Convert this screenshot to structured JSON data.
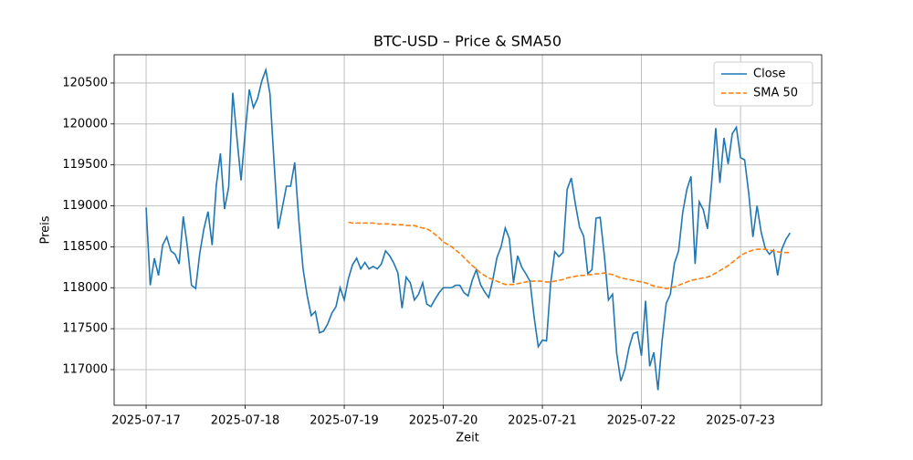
{
  "chart_data": {
    "type": "line",
    "title": "BTC-USD – Price & SMA50",
    "x_label": "Zeit",
    "y_label": "Preis",
    "x": [
      "2025-07-17 00:00",
      "2025-07-17 01:00",
      "2025-07-17 02:00",
      "2025-07-17 03:00",
      "2025-07-17 04:00",
      "2025-07-17 05:00",
      "2025-07-17 06:00",
      "2025-07-17 07:00",
      "2025-07-17 08:00",
      "2025-07-17 09:00",
      "2025-07-17 10:00",
      "2025-07-17 11:00",
      "2025-07-17 12:00",
      "2025-07-17 13:00",
      "2025-07-17 14:00",
      "2025-07-17 15:00",
      "2025-07-17 16:00",
      "2025-07-17 17:00",
      "2025-07-17 18:00",
      "2025-07-17 19:00",
      "2025-07-17 20:00",
      "2025-07-17 21:00",
      "2025-07-17 22:00",
      "2025-07-17 23:00",
      "2025-07-18 00:00",
      "2025-07-18 01:00",
      "2025-07-18 02:00",
      "2025-07-18 03:00",
      "2025-07-18 04:00",
      "2025-07-18 05:00",
      "2025-07-18 06:00",
      "2025-07-18 07:00",
      "2025-07-18 08:00",
      "2025-07-18 09:00",
      "2025-07-18 10:00",
      "2025-07-18 11:00",
      "2025-07-18 12:00",
      "2025-07-18 13:00",
      "2025-07-18 14:00",
      "2025-07-18 15:00",
      "2025-07-18 16:00",
      "2025-07-18 17:00",
      "2025-07-18 18:00",
      "2025-07-18 19:00",
      "2025-07-18 20:00",
      "2025-07-18 21:00",
      "2025-07-18 22:00",
      "2025-07-18 23:00",
      "2025-07-19 00:00",
      "2025-07-19 01:00",
      "2025-07-19 02:00",
      "2025-07-19 03:00",
      "2025-07-19 04:00",
      "2025-07-19 05:00",
      "2025-07-19 06:00",
      "2025-07-19 07:00",
      "2025-07-19 08:00",
      "2025-07-19 09:00",
      "2025-07-19 10:00",
      "2025-07-19 11:00",
      "2025-07-19 12:00",
      "2025-07-19 13:00",
      "2025-07-19 14:00",
      "2025-07-19 15:00",
      "2025-07-19 16:00",
      "2025-07-19 17:00",
      "2025-07-19 18:00",
      "2025-07-19 19:00",
      "2025-07-19 20:00",
      "2025-07-19 21:00",
      "2025-07-19 22:00",
      "2025-07-19 23:00",
      "2025-07-20 00:00",
      "2025-07-20 01:00",
      "2025-07-20 02:00",
      "2025-07-20 03:00",
      "2025-07-20 04:00",
      "2025-07-20 05:00",
      "2025-07-20 06:00",
      "2025-07-20 07:00",
      "2025-07-20 08:00",
      "2025-07-20 09:00",
      "2025-07-20 10:00",
      "2025-07-20 11:00",
      "2025-07-20 12:00",
      "2025-07-20 13:00",
      "2025-07-20 14:00",
      "2025-07-20 15:00",
      "2025-07-20 16:00",
      "2025-07-20 17:00",
      "2025-07-20 18:00",
      "2025-07-20 19:00",
      "2025-07-20 20:00",
      "2025-07-20 21:00",
      "2025-07-20 22:00",
      "2025-07-20 23:00",
      "2025-07-21 00:00",
      "2025-07-21 01:00",
      "2025-07-21 02:00",
      "2025-07-21 03:00",
      "2025-07-21 04:00",
      "2025-07-21 05:00",
      "2025-07-21 06:00",
      "2025-07-21 07:00",
      "2025-07-21 08:00",
      "2025-07-21 09:00",
      "2025-07-21 10:00",
      "2025-07-21 11:00",
      "2025-07-21 12:00",
      "2025-07-21 13:00",
      "2025-07-21 14:00",
      "2025-07-21 15:00",
      "2025-07-21 16:00",
      "2025-07-21 17:00",
      "2025-07-21 18:00",
      "2025-07-21 19:00",
      "2025-07-21 20:00",
      "2025-07-21 21:00",
      "2025-07-21 22:00",
      "2025-07-21 23:00",
      "2025-07-22 00:00",
      "2025-07-22 01:00",
      "2025-07-22 02:00",
      "2025-07-22 03:00",
      "2025-07-22 04:00",
      "2025-07-22 05:00",
      "2025-07-22 06:00",
      "2025-07-22 07:00",
      "2025-07-22 08:00",
      "2025-07-22 09:00",
      "2025-07-22 10:00",
      "2025-07-22 11:00",
      "2025-07-22 12:00",
      "2025-07-22 13:00",
      "2025-07-22 14:00",
      "2025-07-22 15:00",
      "2025-07-22 16:00",
      "2025-07-22 17:00",
      "2025-07-22 18:00",
      "2025-07-22 19:00",
      "2025-07-22 20:00",
      "2025-07-22 21:00",
      "2025-07-22 22:00",
      "2025-07-22 23:00",
      "2025-07-23 00:00",
      "2025-07-23 01:00",
      "2025-07-23 02:00",
      "2025-07-23 03:00",
      "2025-07-23 04:00",
      "2025-07-23 05:00",
      "2025-07-23 06:00",
      "2025-07-23 07:00",
      "2025-07-23 08:00",
      "2025-07-23 09:00",
      "2025-07-23 10:00",
      "2025-07-23 11:00",
      "2025-07-23 12:00"
    ],
    "series": [
      {
        "name": "Close",
        "color": "#1f77b4",
        "dash": "solid",
        "values": [
          118980,
          118030,
          118360,
          118150,
          118520,
          118620,
          118450,
          118410,
          118290,
          118870,
          118500,
          118030,
          117990,
          118420,
          118720,
          118930,
          118520,
          119250,
          119640,
          118960,
          119230,
          120380,
          119830,
          119310,
          119900,
          120420,
          120200,
          120310,
          120520,
          120660,
          120370,
          119530,
          118720,
          118980,
          119240,
          119240,
          119530,
          118820,
          118240,
          117910,
          117660,
          117710,
          117450,
          117470,
          117560,
          117690,
          117770,
          118000,
          117850,
          118110,
          118280,
          118360,
          118230,
          118310,
          118230,
          118260,
          118230,
          118290,
          118450,
          118390,
          118300,
          118180,
          117750,
          118130,
          118060,
          117850,
          117920,
          118060,
          117800,
          117770,
          117860,
          117940,
          118000,
          118000,
          118000,
          118030,
          118030,
          117940,
          117900,
          118090,
          118220,
          118040,
          117950,
          117880,
          118100,
          118370,
          118500,
          118730,
          118600,
          118060,
          118390,
          118250,
          118170,
          118080,
          117640,
          117280,
          117360,
          117350,
          118050,
          118440,
          118380,
          118430,
          119200,
          119340,
          119020,
          118740,
          118630,
          118170,
          118220,
          118850,
          118860,
          118400,
          117850,
          117920,
          117200,
          116860,
          117010,
          117270,
          117440,
          117460,
          117170,
          117840,
          117040,
          117210,
          116750,
          117350,
          117810,
          117920,
          118300,
          118450,
          118920,
          119200,
          119360,
          118290,
          119050,
          118950,
          118720,
          119280,
          119950,
          119280,
          119830,
          119510,
          119880,
          119960,
          119590,
          119560,
          119150,
          118620,
          119000,
          118680,
          118480,
          118410,
          118460,
          118150,
          118470,
          118590,
          118670
        ]
      },
      {
        "name": "SMA 50",
        "color": "#ff7f0e",
        "dash": "dashed",
        "values": [
          null,
          null,
          null,
          null,
          null,
          null,
          null,
          null,
          null,
          null,
          null,
          null,
          null,
          null,
          null,
          null,
          null,
          null,
          null,
          null,
          null,
          null,
          null,
          null,
          null,
          null,
          null,
          null,
          null,
          null,
          null,
          null,
          null,
          null,
          null,
          null,
          null,
          null,
          null,
          null,
          null,
          null,
          null,
          null,
          null,
          null,
          null,
          null,
          null,
          118800,
          118790,
          118790,
          118790,
          118790,
          118790,
          118790,
          118780,
          118780,
          118780,
          118780,
          118770,
          118770,
          118770,
          118760,
          118760,
          118760,
          118740,
          118730,
          118720,
          118690,
          118650,
          118610,
          118560,
          118530,
          118500,
          118460,
          118420,
          118370,
          118320,
          118270,
          118230,
          118180,
          118150,
          118120,
          118100,
          118080,
          118060,
          118040,
          118040,
          118040,
          118050,
          118060,
          118070,
          118080,
          118080,
          118080,
          118080,
          118070,
          118070,
          118080,
          118090,
          118100,
          118120,
          118130,
          118140,
          118150,
          118150,
          118160,
          118160,
          118170,
          118170,
          118180,
          118170,
          118160,
          118140,
          118120,
          118110,
          118100,
          118090,
          118080,
          118070,
          118060,
          118040,
          118020,
          118010,
          118000,
          117990,
          118000,
          118010,
          118030,
          118050,
          118070,
          118090,
          118100,
          118110,
          118120,
          118130,
          118150,
          118180,
          118210,
          118240,
          118270,
          118310,
          118350,
          118390,
          118420,
          118440,
          118460,
          118470,
          118470,
          118470,
          118460,
          118450,
          118440,
          118430,
          118430,
          118430
        ]
      }
    ],
    "xlim": [
      "2025-07-16 16:15",
      "2025-07-23 19:40"
    ],
    "xticks": [
      "2025-07-17",
      "2025-07-18",
      "2025-07-19",
      "2025-07-20",
      "2025-07-21",
      "2025-07-22",
      "2025-07-23"
    ],
    "ylim": [
      116565,
      120845
    ],
    "yticks": [
      117000,
      117500,
      118000,
      118500,
      119000,
      119500,
      120000,
      120500
    ],
    "grid": true,
    "legend": "upper right"
  }
}
